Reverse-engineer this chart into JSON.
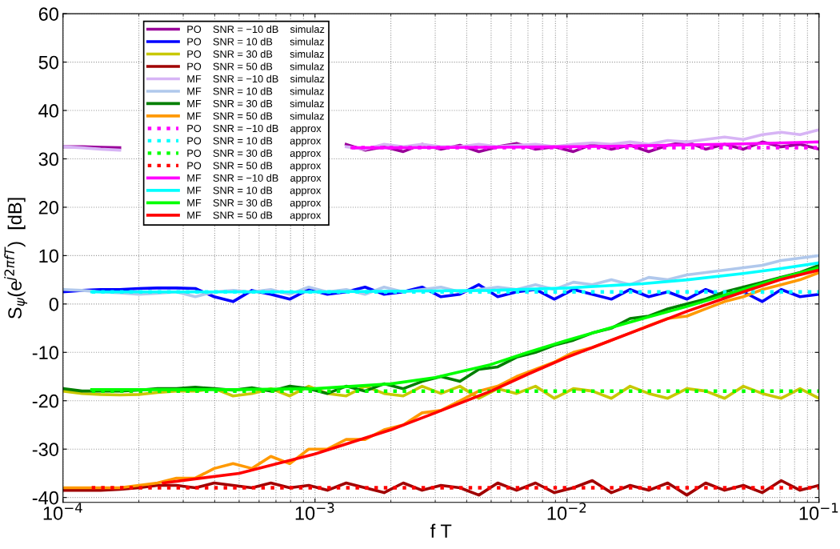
{
  "chart_data": {
    "type": "line",
    "xlabel": "f T",
    "ylabel": "S$_{ψ}$(e$^{j2πfT}$)  [dB]",
    "log": "x",
    "xlim": [
      0.0001,
      0.1
    ],
    "ylim": [
      -41,
      60
    ],
    "xticks": [
      {
        "value": 0.0001,
        "label": "10$^{−4}$"
      },
      {
        "value": 0.001,
        "label": "10$^{−3}$"
      },
      {
        "value": 0.01,
        "label": "10$^{−2}$"
      },
      {
        "value": 0.1,
        "label": "10$^{−1}$"
      }
    ],
    "yticks": [
      -40,
      -30,
      -20,
      -10,
      0,
      10,
      20,
      30,
      40,
      50,
      60
    ],
    "grid": true,
    "legend": "top left",
    "line_style": "solid",
    "marker": "none",
    "x": [
      0.0001,
      0.000119,
      0.000141,
      0.000168,
      0.0002,
      0.000237,
      0.000282,
      0.000335,
      0.000398,
      0.000473,
      0.000562,
      0.000668,
      0.000794,
      0.000944,
      0.00112,
      0.00133,
      0.00158,
      0.00188,
      0.00224,
      0.00266,
      0.00316,
      0.00376,
      0.00447,
      0.00531,
      0.00631,
      0.0075,
      0.00891,
      0.0106,
      0.0126,
      0.015,
      0.0178,
      0.0211,
      0.0251,
      0.0299,
      0.0355,
      0.0422,
      0.0501,
      0.0596,
      0.0708,
      0.0841,
      0.1
    ],
    "series": [
      {
        "name": "PO    SNR = −10 dB    simulaz",
        "color": "#990099",
        "values": [
          32.5,
          32.5,
          32.4,
          32.3,
          null,
          null,
          null,
          null,
          null,
          null,
          null,
          null,
          null,
          null,
          null,
          33,
          31.8,
          32.5,
          31.5,
          33,
          32,
          32.8,
          31.5,
          32.5,
          33.2,
          32,
          32.5,
          31.5,
          33,
          32,
          32.8,
          31.5,
          32.8,
          33.5,
          32,
          33,
          32,
          33.5,
          32.5,
          33,
          32
        ]
      },
      {
        "name": "PO    SNR = 10 dB      simulaz",
        "color": "#0000ff",
        "values": [
          2.5,
          2.8,
          3,
          3,
          3.2,
          3.3,
          3.3,
          3.2,
          1.5,
          0.5,
          2.8,
          2,
          1,
          3,
          2,
          2.5,
          3.5,
          2,
          2.5,
          3.5,
          1.5,
          2,
          4,
          1.5,
          2.5,
          3,
          1,
          3,
          2,
          1,
          3,
          1.5,
          2.5,
          1,
          3,
          1.5,
          2.5,
          0.5,
          3,
          1.5,
          2
        ]
      },
      {
        "name": "PO    SNR = 30 dB      simulaz",
        "color": "#c8c800",
        "values": [
          -18,
          -18.5,
          -18.7,
          -18.8,
          -18.7,
          -18.3,
          -18,
          -18,
          -17.5,
          -19,
          -18.5,
          -17.5,
          -19,
          -17,
          -18.5,
          -19,
          -17,
          -18.5,
          -19,
          -17,
          -18.5,
          -17,
          -19.5,
          -17.5,
          -18.5,
          -17,
          -19.5,
          -17.5,
          -18,
          -19.5,
          -17,
          -18.5,
          -19.5,
          -17.5,
          -18,
          -19.5,
          -17,
          -18.5,
          -19.5,
          -17.5,
          -19.5
        ]
      },
      {
        "name": "PO    SNR = 50 dB      simulaz",
        "color": "#a00000",
        "values": [
          -38.5,
          -38.5,
          -38.5,
          -38.3,
          -38,
          -37.5,
          -37.5,
          -38,
          -37,
          -37.5,
          -38,
          -37,
          -38,
          -37.5,
          -38.5,
          -37,
          -38,
          -39,
          -37,
          -38.5,
          -37.5,
          -38,
          -39.5,
          -37,
          -38.5,
          -37,
          -39,
          -38,
          -36.5,
          -39,
          -37.5,
          -38.5,
          -37,
          -39.5,
          -37,
          -38.5,
          -37.5,
          -39,
          -36.5,
          -38.5,
          -37.5
        ]
      },
      {
        "name": "MF    SNR = −10 dB    simulaz",
        "color": "#d7b4f5",
        "values": [
          32.5,
          32.3,
          32,
          31.8,
          null,
          null,
          null,
          null,
          null,
          null,
          null,
          null,
          null,
          null,
          null,
          32.5,
          32,
          33,
          32.5,
          33,
          32.5,
          32.5,
          33,
          32.5,
          32.8,
          33,
          32.5,
          33,
          33.3,
          33,
          33.5,
          33,
          33.8,
          33.5,
          34,
          34.5,
          34,
          35,
          35.5,
          35,
          36
        ]
      },
      {
        "name": "MF    SNR = 10 dB      simulaz",
        "color": "#b0c8ec",
        "values": [
          3,
          2.8,
          2.5,
          2.3,
          2,
          2.2,
          2.5,
          1.5,
          2.5,
          2.8,
          2.5,
          3,
          2,
          3.5,
          2.5,
          3,
          2,
          3.5,
          2.5,
          3,
          3.5,
          2.5,
          3,
          3.5,
          3,
          4,
          3,
          4.5,
          4,
          5,
          4,
          5.5,
          5,
          6,
          6.5,
          7,
          7.5,
          8,
          9,
          9.5,
          10
        ]
      },
      {
        "name": "MF    SNR = 30 dB      simulaz",
        "color": "#007f00",
        "values": [
          -17.5,
          -18,
          -18,
          -18,
          -17.8,
          -17.5,
          -17.5,
          -17.2,
          -17.5,
          -17.8,
          -17.3,
          -18,
          -17,
          -17.5,
          -18.5,
          -17,
          -18,
          -16.5,
          -17.5,
          -16,
          -15,
          -16,
          -13.5,
          -13,
          -11,
          -10,
          -8.5,
          -7.5,
          -6,
          -5,
          -3,
          -2.5,
          -1,
          0,
          1,
          2.5,
          3.5,
          4.5,
          5.5,
          6.5,
          8
        ]
      },
      {
        "name": "MF    SNR = 50 dB      simulaz",
        "color": "#ff9900",
        "values": [
          -38,
          -38,
          -38,
          -38,
          -37.5,
          -37,
          -36,
          -36,
          -34,
          -33,
          -34,
          -31.5,
          -33,
          -30,
          -30,
          -28,
          -28,
          -26,
          -25,
          -22.5,
          -22,
          -20,
          -18,
          -17,
          -15,
          -13.5,
          -12,
          -10,
          -9,
          -7.5,
          -6,
          -4.5,
          -3,
          -2.5,
          -1,
          0.5,
          1.5,
          3,
          4,
          5,
          6.5
        ]
      },
      {
        "name": "PO    SNR = −10 dB    approx",
        "color": "#ff00ff",
        "line_style": "dotted",
        "x": [
          0.0014,
          0.1
        ],
        "values": [
          32.3,
          32.3
        ]
      },
      {
        "name": "PO    SNR = 10 dB      approx",
        "color": "#00ffff",
        "line_style": "dotted",
        "x": [
          0.00013,
          0.1
        ],
        "values": [
          2.5,
          2.5
        ]
      },
      {
        "name": "PO    SNR = 30 dB      approx",
        "color": "#00ff00",
        "line_style": "dotted",
        "x": [
          0.00013,
          0.1
        ],
        "values": [
          -18,
          -18
        ]
      },
      {
        "name": "PO    SNR = 50 dB      approx",
        "color": "#ff0000",
        "line_style": "dotted",
        "x": [
          0.00013,
          0.1
        ],
        "values": [
          -38,
          -38
        ]
      },
      {
        "name": "MF    SNR = −10 dB    approx",
        "color": "#ff00ff",
        "x": [
          0.0014,
          0.002,
          0.005,
          0.01,
          0.02,
          0.05,
          0.1
        ],
        "values": [
          32.3,
          32.3,
          32.4,
          32.5,
          32.7,
          33.1,
          33.5
        ]
      },
      {
        "name": "MF    SNR = 10 dB      approx",
        "color": "#00ffff",
        "x": [
          0.00013,
          0.001,
          0.005,
          0.01,
          0.02,
          0.03,
          0.05,
          0.07,
          0.1
        ],
        "values": [
          2.5,
          2.5,
          2.8,
          3.3,
          4.2,
          5,
          6.3,
          7.3,
          8.5
        ]
      },
      {
        "name": "MF    SNR = 30 dB      approx",
        "color": "#00ff00",
        "x": [
          0.00013,
          0.0005,
          0.001,
          0.002,
          0.003,
          0.005,
          0.007,
          0.01,
          0.02,
          0.03,
          0.05,
          0.07,
          0.1
        ],
        "values": [
          -17.7,
          -17.7,
          -17.5,
          -16.5,
          -15.2,
          -12.5,
          -10,
          -7.5,
          -3,
          -0.5,
          3,
          5.3,
          7.5
        ]
      },
      {
        "name": "MF    SNR = 50 dB      approx",
        "color": "#ff0000",
        "x": [
          0.00025,
          0.0005,
          0.001,
          0.002,
          0.003,
          0.005,
          0.007,
          0.01,
          0.02,
          0.03,
          0.05,
          0.07,
          0.1
        ],
        "values": [
          -37,
          -35,
          -31,
          -26,
          -22.5,
          -18,
          -14.5,
          -11,
          -5,
          -1.5,
          2.5,
          5,
          7
        ]
      }
    ]
  }
}
